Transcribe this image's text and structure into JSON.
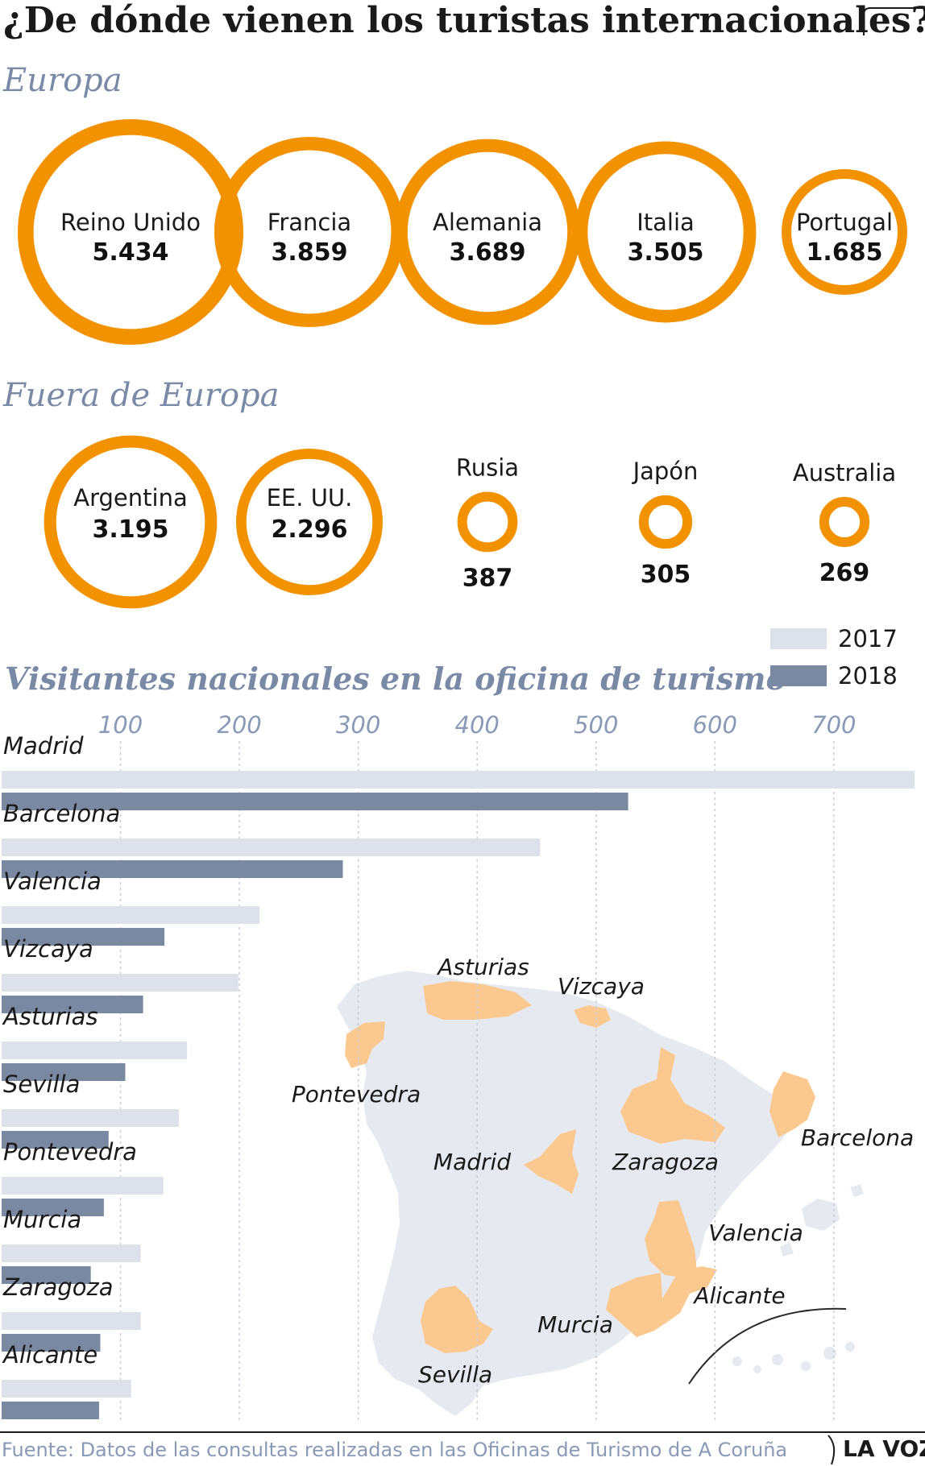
{
  "title": "¿De dónde vienen los turistas internacionales?",
  "colors": {
    "ring": "#f39200",
    "bar2017": "#dde1ea",
    "bar2018": "#7b88a1",
    "map_land": "#e6e9f0",
    "map_highlight": "#fbc98f",
    "section": "#7a8aa6"
  },
  "chart_data": [
    {
      "type": "bubble",
      "title": "Europa",
      "categories": [
        "Reino Unido",
        "Francia",
        "Alemania",
        "Italia",
        "Portugal"
      ],
      "values": [
        5434,
        3859,
        3689,
        3505,
        1685
      ],
      "value_labels": [
        "5.434",
        "3.859",
        "3.689",
        "3.505",
        "1.685"
      ]
    },
    {
      "type": "bubble",
      "title": "Fuera de Europa",
      "categories": [
        "Argentina",
        "EE. UU.",
        "Rusia",
        "Japón",
        "Australia"
      ],
      "values": [
        3195,
        2296,
        387,
        305,
        269
      ],
      "value_labels": [
        "3.195",
        "2.296",
        "387",
        "305",
        "269"
      ]
    },
    {
      "type": "bar",
      "orientation": "horizontal",
      "title": "Visitantes nacionales en la oficina de turismo",
      "categories": [
        "Madrid",
        "Barcelona",
        "Valencia",
        "Vizcaya",
        "Asturias",
        "Sevilla",
        "Pontevedra",
        "Murcia",
        "Zaragoza",
        "Alicante"
      ],
      "series": [
        {
          "name": "2017",
          "values": [
            768,
            453,
            217,
            199,
            156,
            149,
            136,
            117,
            117,
            109
          ]
        },
        {
          "name": "2018",
          "values": [
            527,
            287,
            137,
            119,
            104,
            90,
            86,
            75,
            83,
            82
          ]
        }
      ],
      "xticks": [
        "100",
        "200",
        "300",
        "400",
        "500",
        "600",
        "700"
      ],
      "xlim": [
        0,
        770
      ],
      "grid": true,
      "legend": "top-right"
    }
  ],
  "map": {
    "labels": [
      "Asturias",
      "Vizcaya",
      "Pontevedra",
      "Madrid",
      "Zaragoza",
      "Barcelona",
      "Valencia",
      "Alicante",
      "Murcia",
      "Sevilla"
    ]
  },
  "footer": {
    "source": "Fuente: Datos de las consultas realizadas en las Oficinas de Turismo de A Coruña",
    "brand": "LA VOZ"
  }
}
